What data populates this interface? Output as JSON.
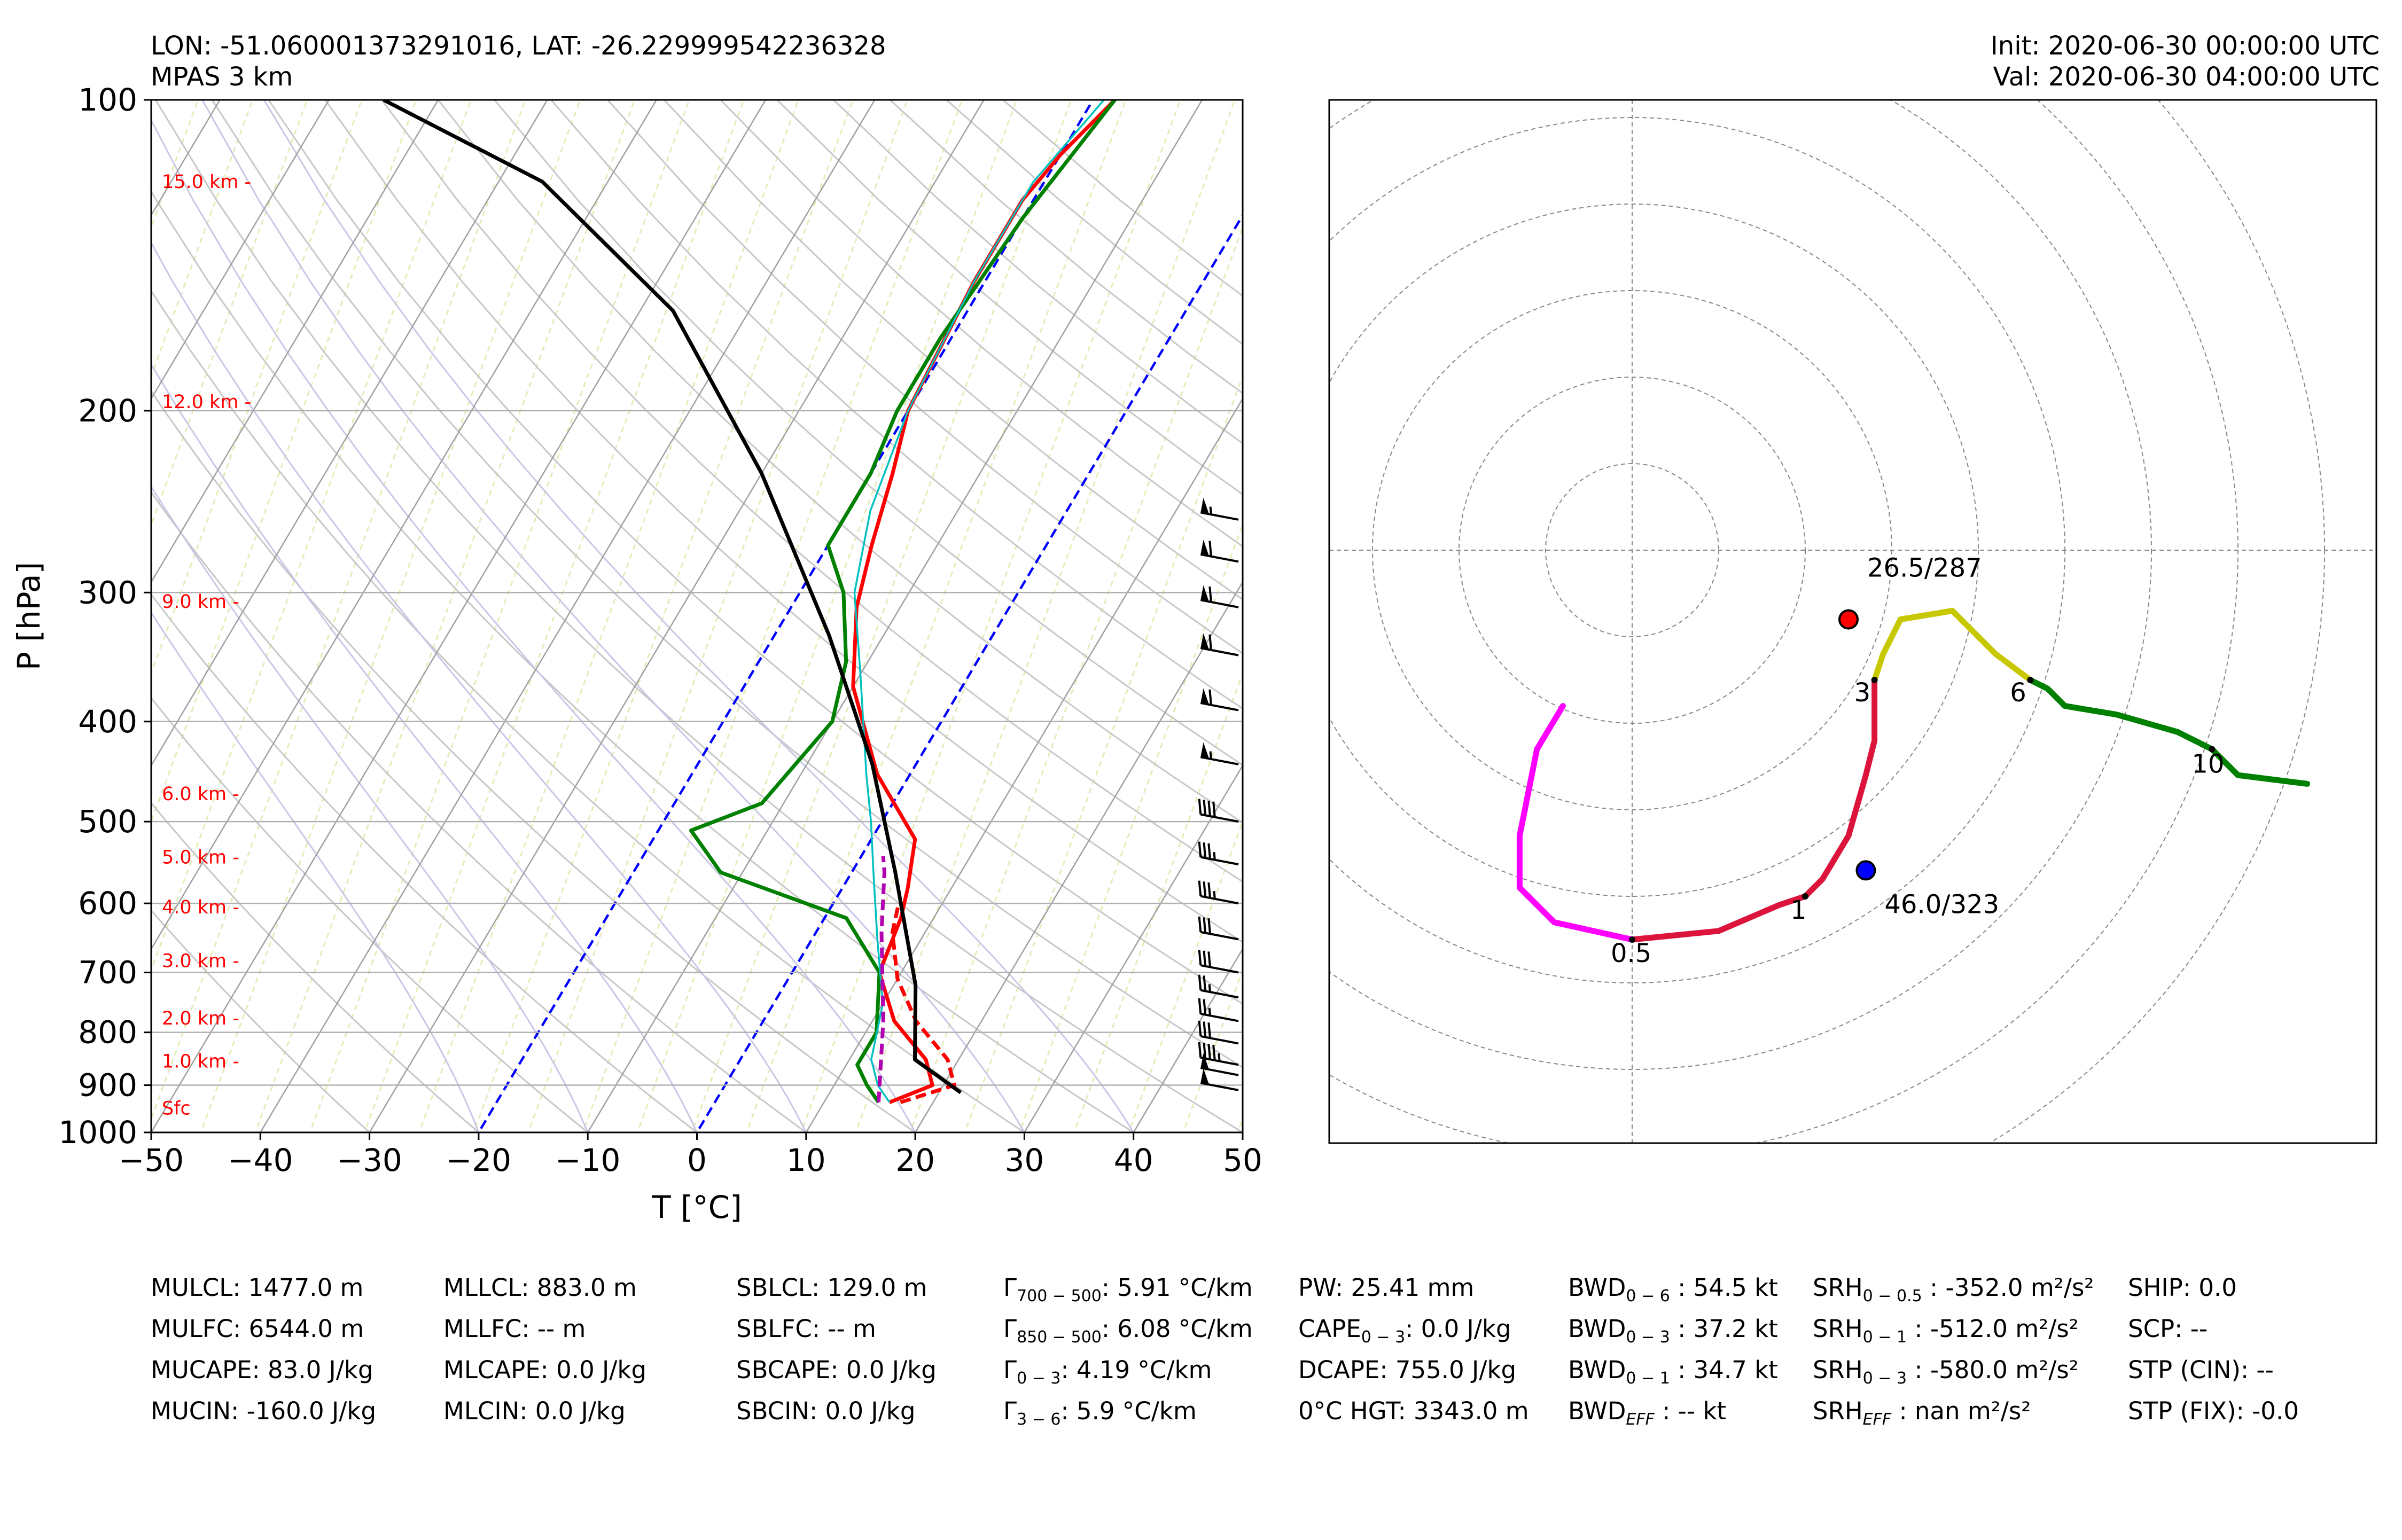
{
  "header": {
    "location": "LON: -51.060001373291016, LAT: -26.229999542236328",
    "model": "MPAS 3 km",
    "init": "Init: 2020-06-30 00:00:00 UTC",
    "valid": "Val: 2020-06-30 04:00:00 UTC"
  },
  "colors": {
    "temperature": "#ff0000",
    "dewpoint": "#008000",
    "wetbulb": "#00c0c0",
    "parcel": "#000000",
    "virtual_temp": "#ff0000",
    "downdraft": "#b000b0",
    "isotherm_zero_dashed": "#0000ff",
    "height_labels": "#ff0000",
    "hodo_0_05": "#ff00ff",
    "hodo_05_3": "#dc143c",
    "hodo_3_6": "#c8c800",
    "hodo_6_12": "#008000",
    "storm_right": "#ff0000",
    "storm_left": "#0000ff"
  },
  "chart_data": [
    {
      "type": "skew-t",
      "xlabel": "T [°C]",
      "ylabel": "P [hPa]",
      "xlim": [
        -50,
        50
      ],
      "ylim": [
        1000,
        100
      ],
      "y_scale": "log",
      "x_ticks": [
        "−50",
        "−40",
        "−30",
        "−20",
        "−10",
        "0",
        "10",
        "20",
        "30",
        "40",
        "50"
      ],
      "y_ticks": [
        "100",
        "200",
        "300",
        "400",
        "500",
        "600",
        "700",
        "800",
        "900",
        "1000"
      ],
      "height_labels": [
        {
          "label": "Sfc",
          "p": 947
        },
        {
          "label": "1.0 km -",
          "p": 853
        },
        {
          "label": "2.0 km -",
          "p": 775
        },
        {
          "label": "3.0 km -",
          "p": 682
        },
        {
          "label": "4.0 km -",
          "p": 605
        },
        {
          "label": "5.0 km -",
          "p": 541
        },
        {
          "label": "6.0 km -",
          "p": 470
        },
        {
          "label": "9.0 km -",
          "p": 306
        },
        {
          "label": "12.0 km -",
          "p": 196
        },
        {
          "label": "15.0 km -",
          "p": 120
        }
      ],
      "series": [
        {
          "key": "temperature",
          "points": [
            [
              16,
              935
            ],
            [
              19,
              900
            ],
            [
              17,
              850
            ],
            [
              12,
              780
            ],
            [
              8,
              700
            ],
            [
              7,
              620
            ],
            [
              6,
              580
            ],
            [
              4,
              520
            ],
            [
              -3,
              450
            ],
            [
              -10,
              370
            ],
            [
              -14,
              310
            ],
            [
              -16,
              270
            ],
            [
              -18,
              230
            ],
            [
              -20,
              200
            ],
            [
              -21,
              150
            ],
            [
              -21,
              125
            ],
            [
              -20,
              113
            ],
            [
              -18,
              100
            ]
          ]
        },
        {
          "key": "virtual_temp",
          "points": [
            [
              17,
              935
            ],
            [
              21,
              900
            ],
            [
              19,
              850
            ],
            [
              14,
              780
            ],
            [
              10,
              710
            ],
            [
              7,
              640
            ],
            [
              6,
              600
            ]
          ]
        },
        {
          "key": "dewpoint",
          "points": [
            [
              15,
              935
            ],
            [
              13,
              900
            ],
            [
              11,
              860
            ],
            [
              11,
              800
            ],
            [
              8,
              700
            ],
            [
              2,
              620
            ],
            [
              -12,
              560
            ],
            [
              -17,
              510
            ],
            [
              -12,
              480
            ],
            [
              -10,
              400
            ],
            [
              -12,
              350
            ],
            [
              -16,
              300
            ],
            [
              -20,
              270
            ],
            [
              -20,
              230
            ],
            [
              -21,
              200
            ],
            [
              -21,
              170
            ],
            [
              -20,
              130
            ],
            [
              -18,
              100
            ]
          ]
        },
        {
          "key": "wetbulb",
          "points": [
            [
              16,
              935
            ],
            [
              14,
              900
            ],
            [
              12,
              850
            ],
            [
              10,
              750
            ],
            [
              6,
              650
            ],
            [
              2,
              560
            ],
            [
              -1,
              500
            ],
            [
              -4,
              450
            ],
            [
              -10,
              360
            ],
            [
              -15,
              300
            ],
            [
              -18,
              250
            ],
            [
              -20,
              200
            ],
            [
              -21,
              150
            ],
            [
              -21,
              120
            ],
            [
              -19,
              100
            ]
          ]
        },
        {
          "key": "parcel",
          "points": [
            [
              22,
              915
            ],
            [
              16,
              850
            ],
            [
              12,
              720
            ],
            [
              4,
              560
            ],
            [
              -4,
              440
            ],
            [
              -15,
              330
            ],
            [
              -30,
              230
            ],
            [
              -47,
              160
            ],
            [
              -66,
              120
            ],
            [
              -85,
              100
            ]
          ]
        },
        {
          "key": "downdraft",
          "points": [
            [
              15,
              935
            ],
            [
              11,
              780
            ],
            [
              6,
              640
            ],
            [
              3,
              560
            ],
            [
              2,
              540
            ]
          ]
        }
      ],
      "wind_barbs_kt": [
        {
          "p": 910,
          "spd": 50
        },
        {
          "p": 880,
          "spd": 50
        },
        {
          "p": 860,
          "spd": 45
        },
        {
          "p": 820,
          "spd": 30
        },
        {
          "p": 780,
          "spd": 25
        },
        {
          "p": 740,
          "spd": 25
        },
        {
          "p": 700,
          "spd": 30
        },
        {
          "p": 650,
          "spd": 30
        },
        {
          "p": 600,
          "spd": 35
        },
        {
          "p": 550,
          "spd": 35
        },
        {
          "p": 500,
          "spd": 40
        },
        {
          "p": 440,
          "spd": 55
        },
        {
          "p": 390,
          "spd": 60
        },
        {
          "p": 345,
          "spd": 60
        },
        {
          "p": 310,
          "spd": 60
        },
        {
          "p": 280,
          "spd": 60
        },
        {
          "p": 255,
          "spd": 55
        }
      ]
    },
    {
      "type": "hodograph",
      "rings_kt": [
        10,
        20,
        30,
        40,
        50,
        60,
        70,
        80
      ],
      "segments": [
        {
          "key": "hodo_0_05",
          "points": [
            [
              -8,
              -18
            ],
            [
              -11,
              -23
            ],
            [
              -13,
              -33
            ],
            [
              -13,
              -39
            ],
            [
              -9,
              -43
            ],
            [
              0,
              -45
            ]
          ]
        },
        {
          "key": "hodo_05_3",
          "points": [
            [
              0,
              -45
            ],
            [
              10,
              -44
            ],
            [
              17,
              -41
            ],
            [
              20,
              -40
            ],
            [
              22,
              -38
            ],
            [
              25,
              -33
            ],
            [
              27,
              -26
            ],
            [
              28,
              -22
            ],
            [
              28,
              -16
            ],
            [
              28,
              -15
            ]
          ]
        },
        {
          "key": "hodo_3_6",
          "points": [
            [
              28,
              -15
            ],
            [
              29,
              -12
            ],
            [
              31,
              -8
            ],
            [
              37,
              -7
            ],
            [
              42,
              -12
            ],
            [
              46,
              -15
            ]
          ]
        },
        {
          "key": "hodo_6_12",
          "points": [
            [
              46,
              -15
            ],
            [
              48,
              -16
            ],
            [
              50,
              -18
            ],
            [
              56,
              -19
            ],
            [
              63,
              -21
            ],
            [
              67,
              -23
            ],
            [
              70,
              -26
            ],
            [
              78,
              -27
            ]
          ]
        }
      ],
      "height_marks": [
        {
          "label": "0.5",
          "u": 0,
          "v": -45
        },
        {
          "label": "1",
          "u": 20,
          "v": -40
        },
        {
          "label": "3",
          "u": 28,
          "v": -15
        },
        {
          "label": "6",
          "u": 46,
          "v": -15
        },
        {
          "label": "10",
          "u": 67,
          "v": -23
        }
      ],
      "storm_motions": [
        {
          "key": "storm_right",
          "label": "26.5/287",
          "u": 25,
          "v": -8
        },
        {
          "key": "storm_left",
          "label": "46.0/323",
          "u": 27,
          "v": -37
        }
      ]
    }
  ],
  "indices": [
    [
      {
        "label": "MULCL: 1477.0 m"
      },
      {
        "label": "MULFC: 6544.0 m"
      },
      {
        "label": "MUCAPE: 83.0 J/kg"
      },
      {
        "label": "MUCIN: -160.0 J/kg"
      }
    ],
    [
      {
        "label": "MLLCL: 883.0 m"
      },
      {
        "label": "MLLFC: -- m"
      },
      {
        "label": "MLCAPE: 0.0 J/kg"
      },
      {
        "label": "MLCIN: 0.0 J/kg"
      }
    ],
    [
      {
        "label": "SBLCL: 129.0 m"
      },
      {
        "label": "SBLFC: -- m"
      },
      {
        "label": "SBCAPE: 0.0 J/kg"
      },
      {
        "label": "SBCIN: 0.0 J/kg"
      }
    ],
    [
      {
        "pre": "Γ",
        "sub": "700 − 500",
        "post": ": 5.91 °C/km"
      },
      {
        "pre": "Γ",
        "sub": "850 − 500",
        "post": ": 6.08 °C/km"
      },
      {
        "pre": "Γ",
        "sub": "0 − 3",
        "post": ": 4.19 °C/km"
      },
      {
        "pre": "Γ",
        "sub": "3 − 6",
        "post": ": 5.9 °C/km"
      }
    ],
    [
      {
        "label": "PW: 25.41 mm"
      },
      {
        "pre": "CAPE",
        "sub": "0 − 3",
        "post": ": 0.0 J/kg"
      },
      {
        "label": "DCAPE: 755.0 J/kg"
      },
      {
        "label": "0°C HGT: 3343.0 m"
      }
    ],
    [
      {
        "pre": "BWD",
        "sub": "0 − 6",
        "post": " : 54.5 kt"
      },
      {
        "pre": "BWD",
        "sub": "0 − 3",
        "post": " : 37.2 kt"
      },
      {
        "pre": "BWD",
        "sub": "0 − 1",
        "post": " : 34.7 kt"
      },
      {
        "pre": "BWD",
        "sub": "EFF",
        "post": " : -- kt"
      }
    ],
    [
      {
        "pre": "SRH",
        "sub": "0 − 0.5",
        "post": " : -352.0 m²/s²"
      },
      {
        "pre": "SRH",
        "sub": "0 − 1",
        "post": " : -512.0 m²/s²"
      },
      {
        "pre": "SRH",
        "sub": "0 − 3",
        "post": " : -580.0 m²/s²"
      },
      {
        "pre": "SRH",
        "sub": "EFF",
        "post": " : nan m²/s²"
      }
    ],
    [
      {
        "label": "SHIP: 0.0"
      },
      {
        "label": "SCP: --"
      },
      {
        "label": "STP (CIN): --"
      },
      {
        "label": "STP (FIX): -0.0"
      }
    ]
  ]
}
